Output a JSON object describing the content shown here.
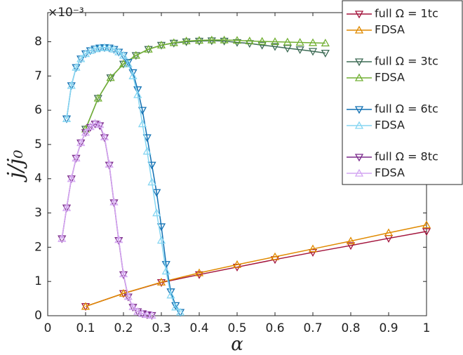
{
  "chart_data": {
    "type": "line",
    "xlabel": "α",
    "ylabel": "j/j₀",
    "annotation": "×10⁻³",
    "xlim": [
      0,
      1
    ],
    "ylim": [
      0,
      8.85
    ],
    "xticks": [
      0,
      0.1,
      0.2,
      0.3,
      0.4,
      0.5,
      0.6,
      0.7,
      0.8,
      0.9,
      1
    ],
    "yticks": [
      0,
      1,
      2,
      3,
      4,
      5,
      6,
      7,
      8
    ],
    "legend": "outside-top-right",
    "series": [
      {
        "name": "full   Ω = 1tc",
        "color": "#a3143c",
        "marker": "v",
        "x": [
          0.1,
          0.2,
          0.3,
          0.4,
          0.5,
          0.6,
          0.7,
          0.8,
          0.9,
          1
        ],
        "values": [
          0.27,
          0.65,
          0.97,
          1.2,
          1.42,
          1.64,
          1.85,
          2.05,
          2.26,
          2.46
        ]
      },
      {
        "name": "FDSA",
        "color": "#e08a00",
        "marker": "^",
        "x": [
          0.1,
          0.2,
          0.3,
          0.4,
          0.5,
          0.6,
          0.7,
          0.8,
          0.9,
          1
        ],
        "values": [
          0.27,
          0.65,
          0.98,
          1.25,
          1.49,
          1.72,
          1.95,
          2.18,
          2.42,
          2.65
        ]
      },
      {
        "name": "full   Ω = 3tc",
        "color": "#3d6b55",
        "marker": "v",
        "x": [
          0.1,
          0.133,
          0.166,
          0.2,
          0.233,
          0.266,
          0.3,
          0.333,
          0.366,
          0.4,
          0.433,
          0.466,
          0.5,
          0.533,
          0.566,
          0.6,
          0.633,
          0.666,
          0.7,
          0.733
        ],
        "values": [
          5.45,
          6.35,
          6.95,
          7.35,
          7.6,
          7.78,
          7.9,
          7.96,
          8.0,
          8.02,
          8.03,
          8.02,
          7.98,
          7.95,
          7.9,
          7.86,
          7.81,
          7.77,
          7.72,
          7.67
        ]
      },
      {
        "name": "FDSA",
        "color": "#72b034",
        "marker": "^",
        "x": [
          0.1,
          0.133,
          0.166,
          0.2,
          0.233,
          0.266,
          0.3,
          0.333,
          0.366,
          0.4,
          0.433,
          0.466,
          0.5,
          0.533,
          0.566,
          0.6,
          0.633,
          0.666,
          0.7,
          0.733
        ],
        "values": [
          5.45,
          6.35,
          6.95,
          7.35,
          7.6,
          7.78,
          7.9,
          7.97,
          8.02,
          8.04,
          8.05,
          8.05,
          8.04,
          8.02,
          8.01,
          8.0,
          7.99,
          7.98,
          7.97,
          7.96
        ]
      },
      {
        "name": "full   Ω = 6tc",
        "color": "#1170b3",
        "marker": "v",
        "x": [
          0.05,
          0.0625,
          0.075,
          0.0875,
          0.1,
          0.1125,
          0.125,
          0.1375,
          0.15,
          0.1625,
          0.175,
          0.1875,
          0.2,
          0.2125,
          0.225,
          0.2375,
          0.25,
          0.2625,
          0.275,
          0.2875,
          0.3,
          0.3125,
          0.325,
          0.3375,
          0.35
        ],
        "values": [
          5.75,
          6.72,
          7.25,
          7.5,
          7.65,
          7.74,
          7.79,
          7.82,
          7.83,
          7.82,
          7.78,
          7.7,
          7.6,
          7.4,
          7.1,
          6.6,
          6.0,
          5.2,
          4.4,
          3.6,
          2.6,
          1.5,
          0.7,
          0.3,
          0.1
        ]
      },
      {
        "name": "FDSA",
        "color": "#86d6f2",
        "marker": "^",
        "x": [
          0.05,
          0.0625,
          0.075,
          0.0875,
          0.1,
          0.1125,
          0.125,
          0.1375,
          0.15,
          0.1625,
          0.175,
          0.1875,
          0.2,
          0.2125,
          0.225,
          0.2375,
          0.25,
          0.2625,
          0.275,
          0.2875,
          0.3,
          0.3125,
          0.325,
          0.3375,
          0.35
        ],
        "values": [
          5.75,
          6.72,
          7.25,
          7.5,
          7.65,
          7.74,
          7.79,
          7.82,
          7.83,
          7.82,
          7.78,
          7.7,
          7.6,
          7.35,
          7.0,
          6.45,
          5.6,
          4.8,
          3.9,
          3.0,
          2.2,
          1.3,
          0.6,
          0.25,
          0.1
        ]
      },
      {
        "name": "full   Ω = 8tc",
        "color": "#7b2a8c",
        "marker": "v",
        "x": [
          0.0375,
          0.05,
          0.0625,
          0.075,
          0.0875,
          0.1,
          0.1125,
          0.125,
          0.1375,
          0.15,
          0.1625,
          0.175,
          0.1875,
          0.2,
          0.2125,
          0.225,
          0.2375,
          0.25,
          0.2625,
          0.275
        ],
        "values": [
          2.25,
          3.15,
          4.0,
          4.6,
          5.05,
          5.35,
          5.5,
          5.6,
          5.55,
          5.2,
          4.4,
          3.3,
          2.2,
          1.2,
          0.55,
          0.25,
          0.12,
          0.06,
          0.03,
          0.01
        ]
      },
      {
        "name": "FDSA",
        "color": "#d4a6f2",
        "marker": "^",
        "x": [
          0.0375,
          0.05,
          0.0625,
          0.075,
          0.0875,
          0.1,
          0.1125,
          0.125,
          0.1375,
          0.15,
          0.1625,
          0.175,
          0.1875,
          0.2,
          0.2125,
          0.225,
          0.2375,
          0.25,
          0.2625,
          0.275
        ],
        "values": [
          2.25,
          3.15,
          4.0,
          4.6,
          5.05,
          5.35,
          5.52,
          5.62,
          5.58,
          5.22,
          4.42,
          3.32,
          2.22,
          1.22,
          0.56,
          0.26,
          0.12,
          0.06,
          0.03,
          0.01
        ]
      }
    ]
  }
}
